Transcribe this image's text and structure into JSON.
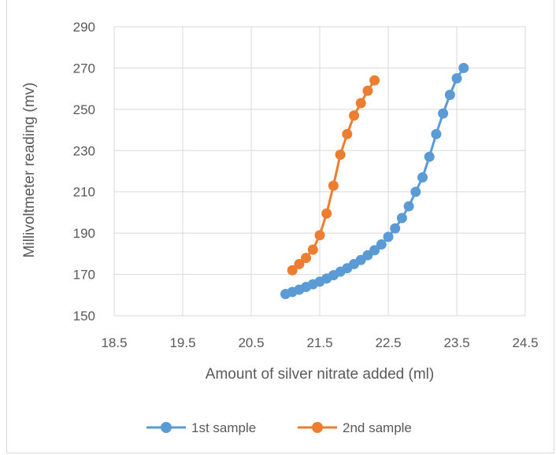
{
  "chart_data": {
    "type": "scatter",
    "title": "",
    "xlabel": "Amount of silver nitrate added (ml)",
    "ylabel": "Millivoltmeter reading (mv)",
    "xlim": [
      18.5,
      24.5
    ],
    "ylim": [
      150,
      290
    ],
    "x_ticks": [
      "18.5",
      "19.5",
      "20.5",
      "21.5",
      "22.5",
      "23.5",
      "24.5"
    ],
    "y_ticks": [
      "150",
      "170",
      "190",
      "210",
      "230",
      "250",
      "270",
      "290"
    ],
    "grid": true,
    "legend_position": "bottom",
    "series": [
      {
        "name": "1st sample",
        "color": "#5b9bd5",
        "points": [
          [
            21.0,
            160.5
          ],
          [
            21.1,
            161.5
          ],
          [
            21.2,
            162.6
          ],
          [
            21.3,
            163.9
          ],
          [
            21.4,
            165.2
          ],
          [
            21.5,
            166.5
          ],
          [
            21.6,
            168.0
          ],
          [
            21.7,
            169.6
          ],
          [
            21.8,
            171.3
          ],
          [
            21.9,
            173.0
          ],
          [
            22.0,
            175.0
          ],
          [
            22.1,
            177.0
          ],
          [
            22.2,
            179.3
          ],
          [
            22.3,
            181.7
          ],
          [
            22.4,
            184.5
          ],
          [
            22.5,
            188.2
          ],
          [
            22.6,
            192.3
          ],
          [
            22.7,
            197.3
          ],
          [
            22.8,
            203.0
          ],
          [
            22.9,
            210.0
          ],
          [
            23.0,
            217.0
          ],
          [
            23.1,
            227.0
          ],
          [
            23.2,
            238.0
          ],
          [
            23.3,
            248.0
          ],
          [
            23.4,
            257.0
          ],
          [
            23.5,
            265.0
          ],
          [
            23.6,
            270.0
          ]
        ]
      },
      {
        "name": "2nd sample",
        "color": "#ed7d31",
        "points": [
          [
            21.1,
            172.0
          ],
          [
            21.2,
            175.0
          ],
          [
            21.3,
            178.0
          ],
          [
            21.4,
            182.0
          ],
          [
            21.5,
            189.0
          ],
          [
            21.6,
            199.5
          ],
          [
            21.7,
            213.0
          ],
          [
            21.8,
            228.0
          ],
          [
            21.9,
            238.0
          ],
          [
            22.0,
            247.0
          ],
          [
            22.1,
            253.0
          ],
          [
            22.2,
            259.0
          ],
          [
            22.3,
            264.0
          ]
        ]
      }
    ]
  }
}
